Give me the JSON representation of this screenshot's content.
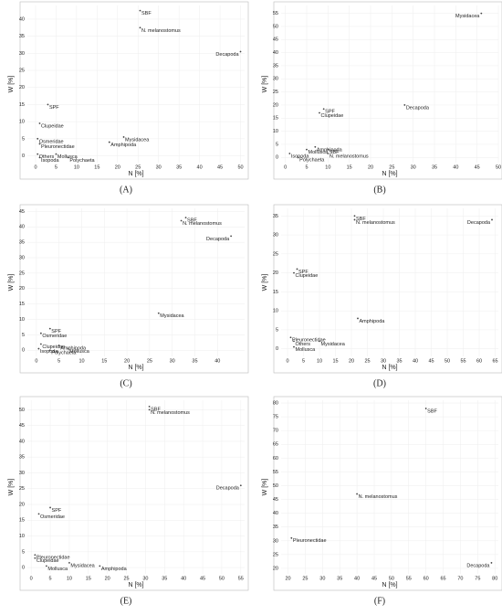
{
  "chart_data": [
    {
      "type": "scatter",
      "caption": "(A)",
      "x_label": "N [%]",
      "y_label": "W [%]",
      "grid": true,
      "color": "#444444",
      "labels": [
        "SBF",
        "N. melanostomus",
        "Decapoda",
        "SPF",
        "Clupeidae",
        "Osmeridae",
        "Pleuronectidae",
        "Mysidacea",
        "Amphipoda",
        "Others",
        "Mollusca",
        "Isopoda",
        "Polychaeta"
      ],
      "x": [
        25.5,
        25.5,
        50,
        3,
        1,
        0.5,
        1,
        21.5,
        18,
        0.5,
        5,
        1,
        8
      ],
      "values": [
        42.5,
        37.5,
        30.5,
        15,
        9.5,
        5,
        3.5,
        5.5,
        4,
        0.5,
        0.5,
        -0.5,
        -0.5
      ],
      "xlim": [
        -2,
        51
      ],
      "ylim": [
        -2,
        44
      ],
      "xticks": [
        0,
        5,
        10,
        15,
        20,
        25,
        30,
        35,
        40,
        45,
        50
      ],
      "yticks": [
        0,
        5,
        10,
        15,
        20,
        25,
        30,
        35,
        40
      ]
    },
    {
      "type": "scatter",
      "caption": "(B)",
      "x_label": "N [%]",
      "y_label": "W [%]",
      "grid": true,
      "color": "#444444",
      "labels": [
        "Mysidacea",
        "Decapoda",
        "SPF",
        "Clupeidae",
        "Amphipoda",
        "Mollusca",
        "SBF",
        "Isopoda",
        "N. melanostomus",
        "Polychaeta"
      ],
      "x": [
        46,
        28,
        9,
        8,
        7,
        5,
        10,
        1,
        10,
        3
      ],
      "values": [
        55,
        20,
        18.5,
        17,
        4,
        3,
        3,
        1.5,
        1.5,
        0
      ],
      "xlim": [
        -1,
        50
      ],
      "ylim": [
        -2,
        58
      ],
      "xticks": [
        0,
        5,
        10,
        15,
        20,
        25,
        30,
        35,
        40,
        45,
        50
      ],
      "yticks": [
        0,
        5,
        10,
        15,
        20,
        25,
        30,
        35,
        40,
        45,
        50,
        55
      ]
    },
    {
      "type": "scatter",
      "caption": "(C)",
      "x_label": "N [%]",
      "y_label": "W [%]",
      "grid": true,
      "color": "#444444",
      "labels": [
        "SBF",
        "N. melanostomus",
        "Decapoda",
        "Mysidacea",
        "SPF",
        "Osmeridae",
        "Clupeidae",
        "Amphipoda",
        "Isopoda",
        "Mollusca",
        "Polychaeta"
      ],
      "x": [
        33,
        32,
        43,
        27,
        3,
        1,
        1,
        5,
        0.5,
        7,
        3
      ],
      "values": [
        43,
        42,
        37,
        12,
        7,
        5.5,
        2,
        1.5,
        0.5,
        0.5,
        0
      ],
      "xlim": [
        -2,
        46
      ],
      "ylim": [
        -2,
        46
      ],
      "xticks": [
        0,
        5,
        10,
        15,
        20,
        25,
        30,
        35,
        40
      ],
      "yticks": [
        0,
        5,
        10,
        15,
        20,
        25,
        30,
        35,
        40,
        45
      ]
    },
    {
      "type": "scatter",
      "caption": "(D)",
      "x_label": "N [%]",
      "y_label": "W [%]",
      "grid": true,
      "color": "#444444",
      "labels": [
        "SBF",
        "N. melanostomus",
        "Decapoda",
        "SPF",
        "Clupeidae",
        "Amphipoda",
        "Pleuronectidae",
        "Others",
        "Mysidacea",
        "Mollusca"
      ],
      "x": [
        21,
        21,
        64,
        3,
        2,
        22,
        1,
        2,
        10,
        2
      ],
      "values": [
        35,
        34,
        34,
        21,
        20,
        8,
        3,
        2,
        2,
        0.5
      ],
      "xlim": [
        -2,
        66
      ],
      "ylim": [
        -2,
        37
      ],
      "xticks": [
        0,
        5,
        10,
        15,
        20,
        25,
        30,
        35,
        40,
        45,
        50,
        55,
        60,
        65
      ],
      "yticks": [
        0,
        5,
        10,
        15,
        20,
        25,
        30,
        35
      ]
    },
    {
      "type": "scatter",
      "caption": "(E)",
      "x_label": "N [%]",
      "y_label": "W [%]",
      "grid": true,
      "color": "#444444",
      "labels": [
        "SBF",
        "N. melanostomus",
        "Decapoda",
        "SPF",
        "Osmeridae",
        "Pleuronectidae",
        "Clupeidae",
        "Mysidacea",
        "Mollusca",
        "Amphipoda"
      ],
      "x": [
        31,
        31,
        55,
        5,
        2,
        1,
        1,
        10,
        4,
        18
      ],
      "values": [
        51,
        50,
        26,
        19,
        17,
        4,
        3,
        1.5,
        0.5,
        0.5
      ],
      "xlim": [
        -1,
        56
      ],
      "ylim": [
        -2,
        53
      ],
      "xticks": [
        0,
        5,
        10,
        15,
        20,
        25,
        30,
        35,
        40,
        45,
        50,
        55
      ],
      "yticks": [
        0,
        5,
        10,
        15,
        20,
        25,
        30,
        35,
        40,
        45,
        50
      ]
    },
    {
      "type": "scatter",
      "caption": "(F)",
      "x_label": "N [%]",
      "y_label": "W [%]",
      "grid": true,
      "color": "#444444",
      "labels": [
        "SBF",
        "N. melanostomus",
        "Pleuronectidae",
        "Decapoda"
      ],
      "x": [
        60,
        40,
        21,
        79
      ],
      "values": [
        78,
        47,
        31,
        22
      ],
      "xlim": [
        18,
        81
      ],
      "ylim": [
        18,
        81
      ],
      "xticks": [
        20,
        25,
        30,
        35,
        40,
        45,
        50,
        55,
        60,
        65,
        70,
        75,
        80
      ],
      "yticks": [
        20,
        25,
        30,
        35,
        40,
        45,
        50,
        55,
        60,
        65,
        70,
        75,
        80
      ]
    }
  ]
}
